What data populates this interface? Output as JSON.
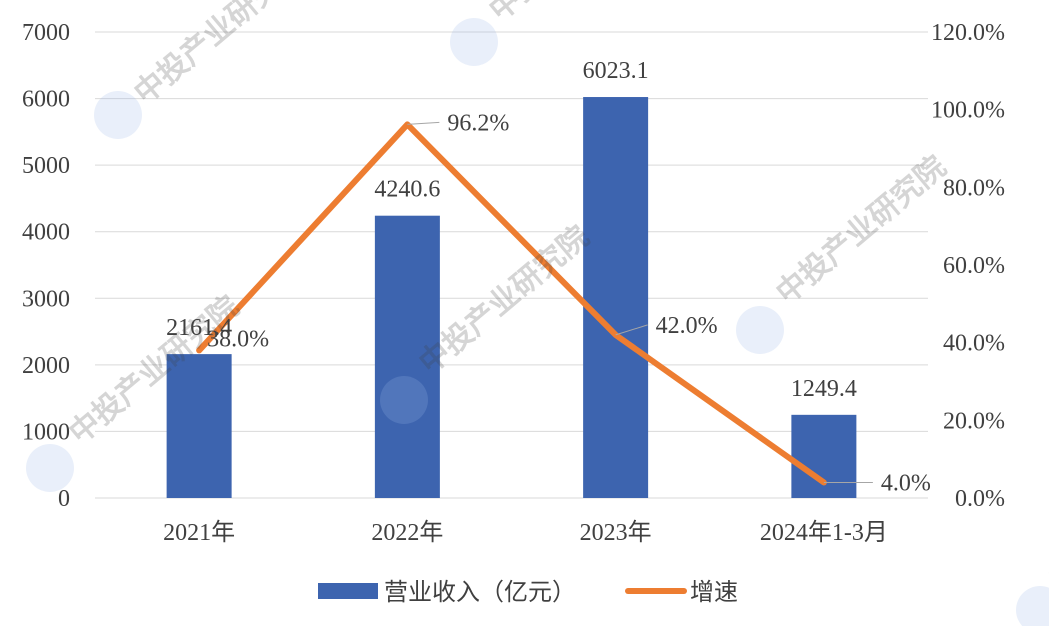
{
  "chart_data": {
    "type": "bar+line",
    "categories": [
      "2021年",
      "2022年",
      "2023年",
      "2024年1-3月"
    ],
    "series": [
      {
        "name": "营业收入（亿元）",
        "type": "bar",
        "axis": "left",
        "values": [
          2161.4,
          4240.6,
          6023.1,
          1249.4
        ],
        "labels": [
          "2161.4",
          "4240.6",
          "6023.1",
          "1249.4"
        ],
        "color": "#3D64AF"
      },
      {
        "name": "增速",
        "type": "line",
        "axis": "right",
        "values": [
          38.0,
          96.2,
          42.0,
          4.0
        ],
        "labels": [
          "38.0%",
          "96.2%",
          "42.0%",
          "4.0%"
        ],
        "color": "#ED7D31"
      }
    ],
    "y_left": {
      "min": 0,
      "max": 7000,
      "ticks": [
        "0",
        "1000",
        "2000",
        "3000",
        "4000",
        "5000",
        "6000",
        "7000"
      ]
    },
    "y_right": {
      "min": 0,
      "max": 120,
      "ticks": [
        "0.0%",
        "20.0%",
        "40.0%",
        "60.0%",
        "80.0%",
        "100.0%",
        "120.0%"
      ]
    },
    "grid": true,
    "legend_position": "bottom-center",
    "watermark_text": "中投产业研究院"
  }
}
